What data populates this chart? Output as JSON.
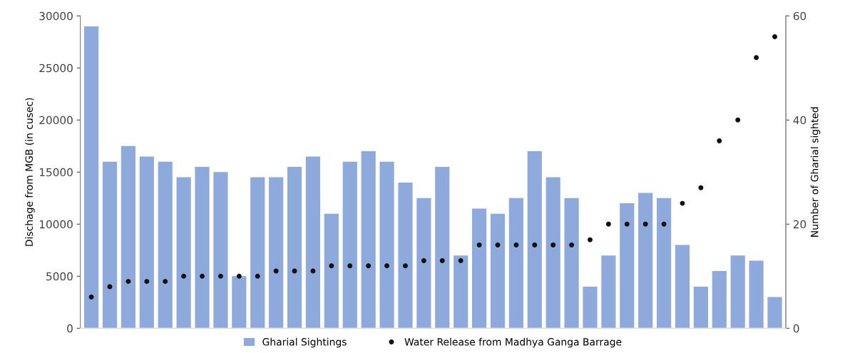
{
  "chart_data": {
    "type": "bar",
    "ylabel": "Dischage from MGB (in cusec)",
    "y2label": "Number of Gharial sighted",
    "categories": [
      null,
      null,
      null,
      null,
      null,
      null,
      null,
      null,
      null,
      null,
      null,
      null,
      null,
      null,
      null,
      null,
      null,
      null,
      null,
      null,
      null,
      null,
      null,
      null,
      null,
      null,
      null,
      null,
      null,
      null,
      null,
      null,
      null,
      null,
      null,
      null,
      null,
      null
    ],
    "series": [
      {
        "name": "Gharial Sightings",
        "axis": "y2",
        "color": "#8eaadc",
        "values": [
          58,
          32,
          35,
          33,
          32,
          29,
          31,
          30,
          10,
          29,
          29,
          31,
          33,
          22,
          32,
          34,
          32,
          28,
          25,
          31,
          14,
          23,
          22,
          25,
          34,
          29,
          25,
          8,
          14,
          24,
          26,
          25,
          16,
          8,
          11,
          14,
          13,
          6
        ]
      },
      {
        "name": "Water Release from Madhya Ganga Barrage",
        "type": "scatter",
        "axis": "y",
        "color": "#111111",
        "marker": "circle",
        "values": [
          3000,
          4000,
          4500,
          4500,
          4500,
          5000,
          5000,
          5000,
          5000,
          5000,
          5500,
          5500,
          5500,
          6000,
          6000,
          6000,
          6000,
          6000,
          6500,
          6500,
          6500,
          8000,
          8000,
          8000,
          8000,
          8000,
          8000,
          8500,
          10000,
          10000,
          10000,
          10000,
          12000,
          13500,
          18000,
          20000,
          26000,
          28000
        ]
      }
    ],
    "ylim": [
      0,
      30000
    ],
    "yticks": [
      0,
      5000,
      10000,
      15000,
      20000,
      25000,
      30000
    ],
    "y2lim": [
      0,
      60
    ],
    "y2ticks": [
      0,
      20,
      40,
      60
    ],
    "grid": false,
    "legend": "bottom"
  }
}
